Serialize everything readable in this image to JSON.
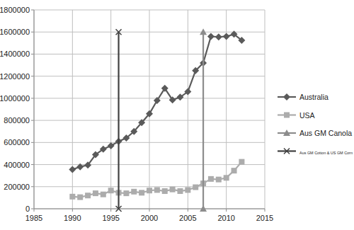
{
  "chart_data": {
    "type": "line",
    "x": [
      1990,
      1991,
      1992,
      1993,
      1994,
      1995,
      1996,
      1997,
      1998,
      1999,
      2000,
      2001,
      2002,
      2003,
      2004,
      2005,
      2006,
      2007,
      2008,
      2009,
      2010,
      2011,
      2012
    ],
    "series": [
      {
        "name": "Australia",
        "color": "#5a5a5a",
        "marker": "diamond",
        "values": [
          355000,
          380000,
          395000,
          490000,
          540000,
          570000,
          610000,
          640000,
          700000,
          780000,
          860000,
          980000,
          1090000,
          985000,
          1010000,
          1060000,
          1250000,
          1320000,
          1560000,
          1555000,
          1560000,
          1580000,
          1525000
        ]
      },
      {
        "name": "USA",
        "color": "#acacac",
        "marker": "square",
        "values": [
          110000,
          105000,
          120000,
          140000,
          130000,
          165000,
          145000,
          140000,
          155000,
          145000,
          165000,
          170000,
          160000,
          175000,
          160000,
          170000,
          195000,
          230000,
          270000,
          265000,
          280000,
          345000,
          425000
        ]
      },
      {
        "name": "Aus GM Canola",
        "color": "#8c8c8c",
        "marker": "triangle",
        "x": [
          2007,
          2007
        ],
        "values": [
          0,
          1600000
        ]
      },
      {
        "name": "Aus GM Cotton & US GM Corn",
        "color": "#404040",
        "marker": "x",
        "x": [
          1996,
          1996
        ],
        "values": [
          0,
          1600000
        ]
      }
    ],
    "xlim": [
      1985,
      2015
    ],
    "xticks": [
      1985,
      1990,
      1995,
      2000,
      2005,
      2010,
      2015
    ],
    "ylim": [
      0,
      1800000
    ],
    "yticks": [
      0,
      200000,
      400000,
      600000,
      800000,
      1000000,
      1200000,
      1400000,
      1600000,
      1800000
    ],
    "grid": true,
    "legend": "right"
  }
}
